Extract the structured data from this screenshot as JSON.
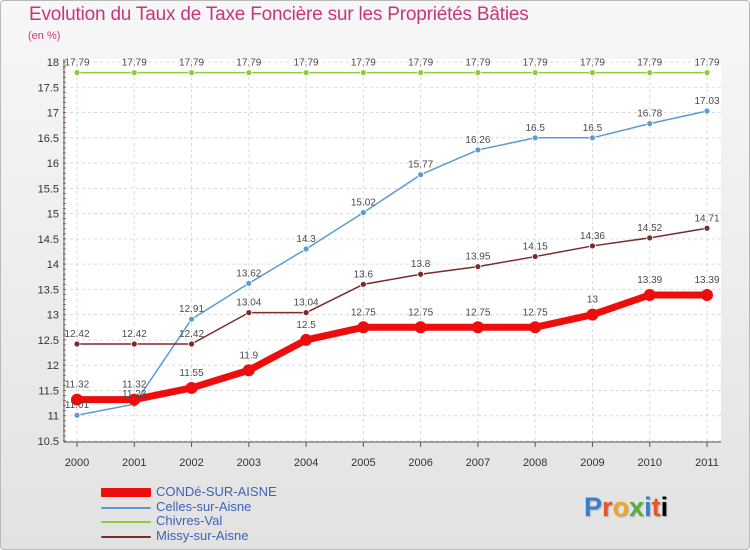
{
  "title": "Evolution du Taux de Taxe Foncière sur les Propriétés Bâties",
  "subtitle": "(en %)",
  "logo_text": "Proxiti",
  "chart_data": {
    "type": "line",
    "categories": [
      "2000",
      "2001",
      "2002",
      "2003",
      "2004",
      "2005",
      "2006",
      "2007",
      "2008",
      "2009",
      "2010",
      "2011"
    ],
    "ylim": [
      10.5,
      18
    ],
    "yticks": [
      "10.5",
      "11",
      "11.5",
      "12",
      "12.5",
      "13",
      "13.5",
      "14",
      "14.5",
      "15",
      "15.5",
      "16",
      "16.5",
      "17",
      "17.5",
      "18"
    ],
    "grid": true,
    "legend_position": "bottom-left",
    "series": [
      {
        "name": "Chivres-Val",
        "color": "#8ccd3a",
        "values": [
          17.79,
          17.79,
          17.79,
          17.79,
          17.79,
          17.79,
          17.79,
          17.79,
          17.79,
          17.79,
          17.79,
          17.79
        ],
        "labels": [
          "17.79",
          "17.79",
          "17.79",
          "17.79",
          "17.79",
          "17.79",
          "17.79",
          "17.79",
          "17.79",
          "17.79",
          "17.79",
          "17.79"
        ]
      },
      {
        "name": "Celles-sur-Aisne",
        "color": "#5b9bd5",
        "values": [
          11.01,
          11.23,
          12.91,
          13.62,
          14.3,
          15.02,
          15.77,
          16.26,
          16.5,
          16.5,
          16.78,
          17.03
        ],
        "labels": [
          "11.01",
          "11.23",
          "12.91",
          "13.62",
          "14.3",
          "15.02",
          "15.77",
          "16.26",
          "16.5",
          "16.5",
          "16.78",
          "17.03"
        ]
      },
      {
        "name": "Missy-sur-Aisne",
        "color": "#7b2b2b",
        "values": [
          12.42,
          12.42,
          12.42,
          13.04,
          13.04,
          13.6,
          13.8,
          13.95,
          14.15,
          14.36,
          14.52,
          14.71
        ],
        "labels": [
          "12.42",
          "12.42",
          "12.42",
          "13.04",
          "13.04",
          "13.6",
          "13.8",
          "13.95",
          "14.15",
          "14.36",
          "14.52",
          "14.71"
        ]
      },
      {
        "name": "CONDé-SUR-AISNE",
        "color": "#ee0d0d",
        "values": [
          11.32,
          11.32,
          11.55,
          11.9,
          12.5,
          12.75,
          12.75,
          12.75,
          12.75,
          13,
          13.39,
          13.39
        ],
        "labels": [
          "11.32",
          "11.32",
          "11.55",
          "11.9",
          "12.5",
          "12.75",
          "12.75",
          "12.75",
          "12.75",
          "13",
          "13.39",
          "13.39"
        ]
      }
    ]
  },
  "legend": [
    {
      "label": "CONDé-SUR-AISNE",
      "color": "#ee0d0d"
    },
    {
      "label": "Celles-sur-Aisne",
      "color": "#5b9bd5"
    },
    {
      "label": "Chivres-Val",
      "color": "#8ccd3a"
    },
    {
      "label": "Missy-sur-Aisne",
      "color": "#7b2b2b"
    }
  ]
}
